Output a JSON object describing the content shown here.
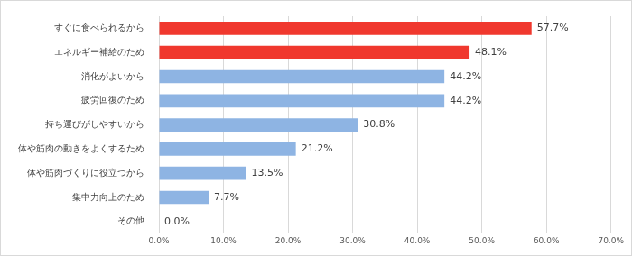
{
  "chart_data": {
    "type": "bar",
    "orientation": "horizontal",
    "categories": [
      "すぐに食べられるから",
      "エネルギー補給のため",
      "消化がよいから",
      "疲労回復のため",
      "持ち運びがしやすいから",
      "体や筋肉の動きをよくするため",
      "体や筋肉づくりに役立つから",
      "集中力向上のため",
      "その他"
    ],
    "values": [
      57.7,
      48.1,
      44.2,
      44.2,
      30.8,
      21.2,
      13.5,
      7.7,
      0.0
    ],
    "value_labels": [
      "57.7%",
      "48.1%",
      "44.2%",
      "44.2%",
      "30.8%",
      "21.2%",
      "13.5%",
      "7.7%",
      "0.0%"
    ],
    "colors": [
      "#f0382e",
      "#f0382e",
      "#8eb4e3",
      "#8eb4e3",
      "#8eb4e3",
      "#8eb4e3",
      "#8eb4e3",
      "#8eb4e3",
      "#8eb4e3"
    ],
    "xlim": [
      0,
      70
    ],
    "xticks": [
      {
        "value": 0,
        "label": "0.0%"
      },
      {
        "value": 10,
        "label": "10.0%"
      },
      {
        "value": 20,
        "label": "20.0%"
      },
      {
        "value": 30,
        "label": "30.0%"
      },
      {
        "value": 40,
        "label": "40.0%"
      },
      {
        "value": 50,
        "label": "50.0%"
      },
      {
        "value": 60,
        "label": "60.0%"
      },
      {
        "value": 70,
        "label": "70.0%"
      }
    ],
    "grid": true,
    "data_labels": true
  }
}
